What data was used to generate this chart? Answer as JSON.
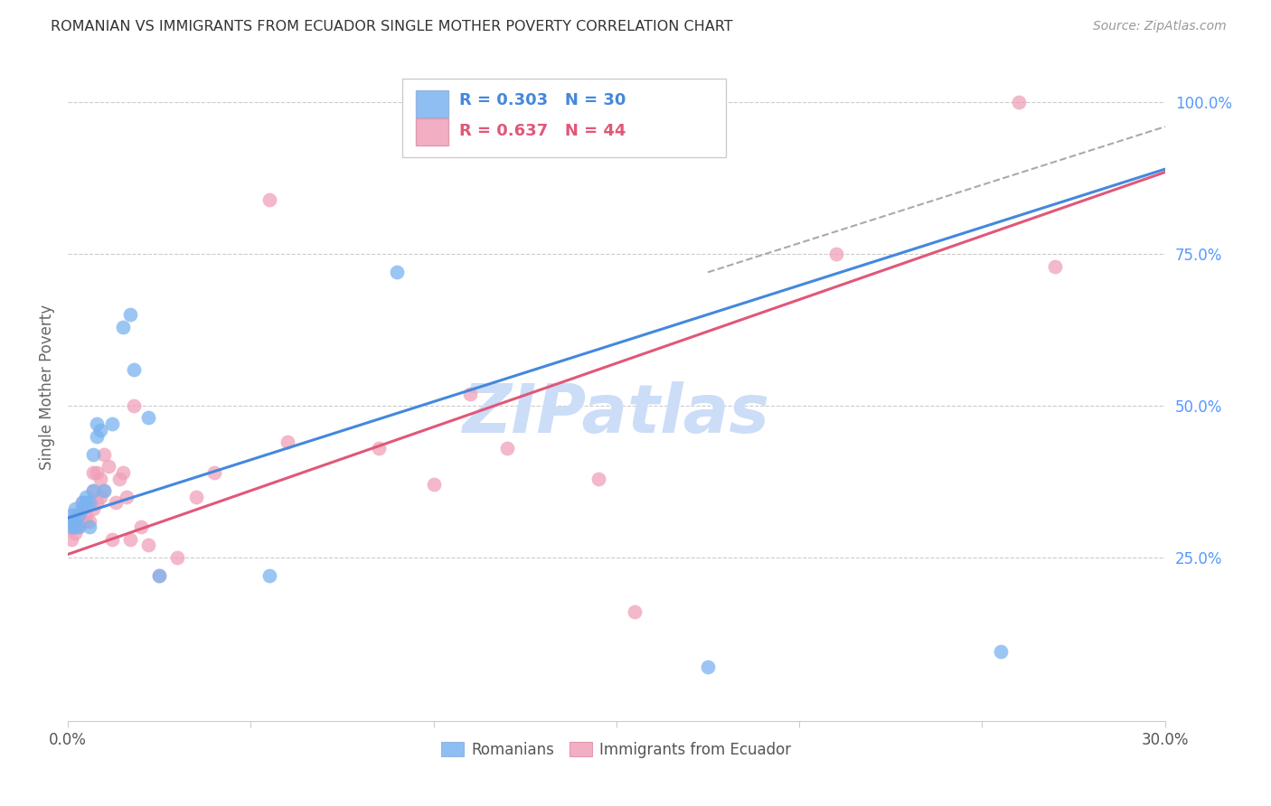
{
  "title": "ROMANIAN VS IMMIGRANTS FROM ECUADOR SINGLE MOTHER POVERTY CORRELATION CHART",
  "source": "Source: ZipAtlas.com",
  "ylabel": "Single Mother Poverty",
  "xlim": [
    0.0,
    0.3
  ],
  "ylim": [
    -0.02,
    1.08
  ],
  "xtick_positions": [
    0.0,
    0.05,
    0.1,
    0.15,
    0.2,
    0.25,
    0.3
  ],
  "xtick_labels": [
    "0.0%",
    "",
    "",
    "",
    "",
    "",
    "30.0%"
  ],
  "ytick_positions": [
    0.25,
    0.5,
    0.75,
    1.0
  ],
  "ytick_labels": [
    "25.0%",
    "50.0%",
    "75.0%",
    "100.0%"
  ],
  "romanian_R": 0.303,
  "romanian_N": 30,
  "ecuador_R": 0.637,
  "ecuador_N": 44,
  "romanian_color": "#7ab3f0",
  "ecuador_color": "#f0a0b8",
  "romanian_line_color": "#4488dd",
  "ecuador_line_color": "#e05878",
  "watermark": "ZIPatlas",
  "watermark_color": "#ccddf8",
  "romanian_x": [
    0.001,
    0.001,
    0.001,
    0.002,
    0.002,
    0.002,
    0.003,
    0.003,
    0.004,
    0.004,
    0.005,
    0.005,
    0.006,
    0.006,
    0.007,
    0.007,
    0.008,
    0.008,
    0.009,
    0.01,
    0.012,
    0.015,
    0.017,
    0.018,
    0.022,
    0.025,
    0.055,
    0.09,
    0.175,
    0.255
  ],
  "romanian_y": [
    0.3,
    0.31,
    0.32,
    0.3,
    0.31,
    0.33,
    0.3,
    0.32,
    0.33,
    0.34,
    0.34,
    0.35,
    0.3,
    0.34,
    0.36,
    0.42,
    0.45,
    0.47,
    0.46,
    0.36,
    0.47,
    0.63,
    0.65,
    0.56,
    0.48,
    0.22,
    0.22,
    0.72,
    0.07,
    0.095
  ],
  "ecuador_x": [
    0.001,
    0.001,
    0.002,
    0.002,
    0.003,
    0.003,
    0.004,
    0.005,
    0.005,
    0.006,
    0.007,
    0.007,
    0.007,
    0.008,
    0.008,
    0.009,
    0.009,
    0.01,
    0.01,
    0.011,
    0.012,
    0.013,
    0.014,
    0.015,
    0.016,
    0.017,
    0.018,
    0.02,
    0.022,
    0.025,
    0.03,
    0.035,
    0.04,
    0.055,
    0.06,
    0.085,
    0.1,
    0.11,
    0.12,
    0.145,
    0.155,
    0.21,
    0.26,
    0.27
  ],
  "ecuador_y": [
    0.28,
    0.3,
    0.29,
    0.32,
    0.3,
    0.32,
    0.34,
    0.31,
    0.32,
    0.31,
    0.33,
    0.36,
    0.39,
    0.34,
    0.39,
    0.35,
    0.38,
    0.36,
    0.42,
    0.4,
    0.28,
    0.34,
    0.38,
    0.39,
    0.35,
    0.28,
    0.5,
    0.3,
    0.27,
    0.22,
    0.25,
    0.35,
    0.39,
    0.84,
    0.44,
    0.43,
    0.37,
    0.52,
    0.43,
    0.38,
    0.16,
    0.75,
    1.0,
    0.73
  ],
  "romanian_line_x": [
    0.0,
    0.3
  ],
  "romanian_line_y": [
    0.315,
    0.89
  ],
  "ecuador_line_x": [
    0.0,
    0.3
  ],
  "ecuador_line_y": [
    0.255,
    0.885
  ],
  "dash_line_x": [
    0.175,
    0.3
  ],
  "dash_line_y": [
    0.72,
    0.96
  ]
}
